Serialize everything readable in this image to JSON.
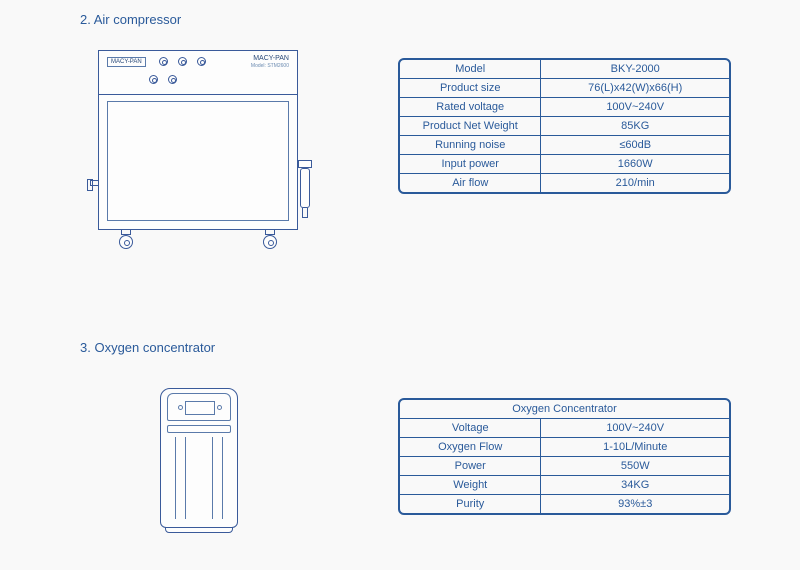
{
  "section1": {
    "title": "2. Air compressor",
    "brand": "MACY-PAN",
    "model_label": "Model: STM2600"
  },
  "section2": {
    "title": "3. Oxygen concentrator"
  },
  "table1": {
    "rows": [
      {
        "label": "Model",
        "value": "BKY-2000"
      },
      {
        "label": "Product size",
        "value": "76(L)x42(W)x66(H)"
      },
      {
        "label": "Rated voltage",
        "value": "100V~240V"
      },
      {
        "label": "Product Net Weight",
        "value": "85KG"
      },
      {
        "label": "Running noise",
        "value": "≤60dB"
      },
      {
        "label": "Input power",
        "value": "1660W"
      },
      {
        "label": "Air flow",
        "value": "210/min"
      }
    ]
  },
  "table2": {
    "header": "Oxygen Concentrator",
    "rows": [
      {
        "label": "Voltage",
        "value": "100V~240V"
      },
      {
        "label": "Oxygen Flow",
        "value": "1-10L/Minute"
      },
      {
        "label": "Power",
        "value": "550W"
      },
      {
        "label": "Weight",
        "value": "34KG"
      },
      {
        "label": "Purity",
        "value": "93%±3"
      }
    ]
  },
  "colors": {
    "stroke": "#3a5a9a",
    "text": "#2a5a9a",
    "bg": "#f9f9f9"
  }
}
